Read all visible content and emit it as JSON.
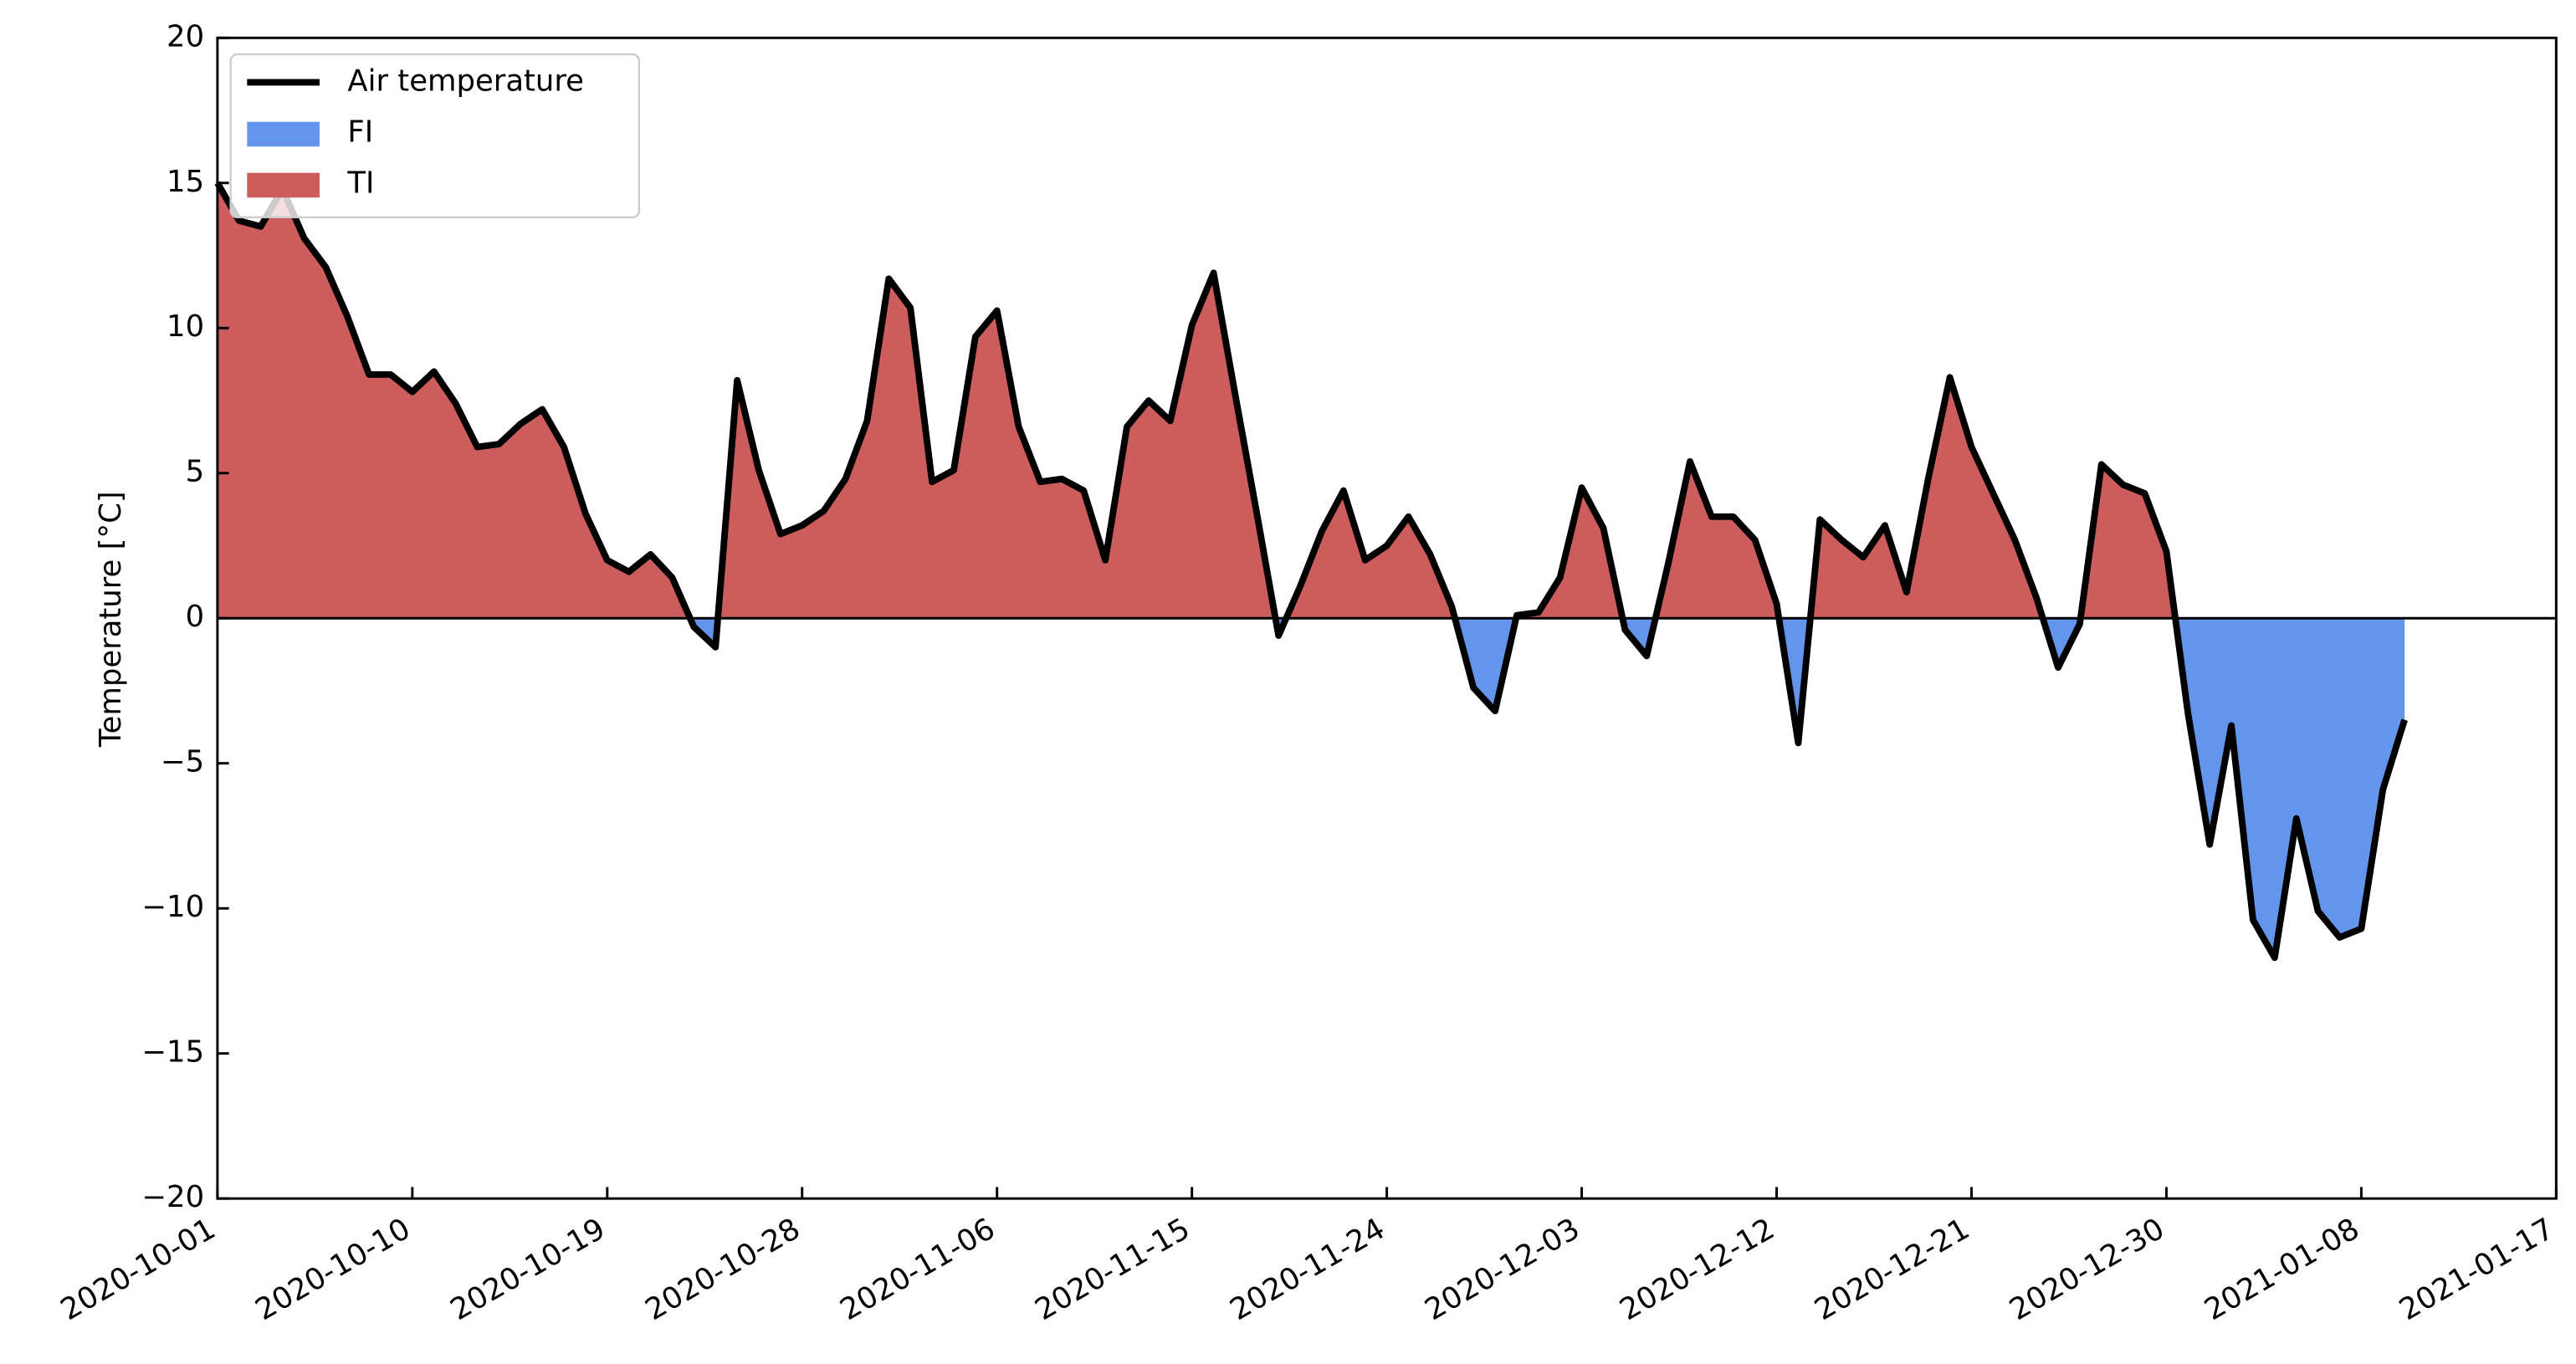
{
  "chart_data": {
    "type": "line",
    "ylabel": "Temperature [°C]",
    "x": [
      "2020-10-01",
      "2020-10-02",
      "2020-10-03",
      "2020-10-04",
      "2020-10-05",
      "2020-10-06",
      "2020-10-07",
      "2020-10-08",
      "2020-10-09",
      "2020-10-10",
      "2020-10-11",
      "2020-10-12",
      "2020-10-13",
      "2020-10-14",
      "2020-10-15",
      "2020-10-16",
      "2020-10-17",
      "2020-10-18",
      "2020-10-19",
      "2020-10-20",
      "2020-10-21",
      "2020-10-22",
      "2020-10-23",
      "2020-10-24",
      "2020-10-25",
      "2020-10-26",
      "2020-10-27",
      "2020-10-28",
      "2020-10-29",
      "2020-10-30",
      "2020-10-31",
      "2020-11-01",
      "2020-11-02",
      "2020-11-03",
      "2020-11-04",
      "2020-11-05",
      "2020-11-06",
      "2020-11-07",
      "2020-11-08",
      "2020-11-09",
      "2020-11-10",
      "2020-11-11",
      "2020-11-12",
      "2020-11-13",
      "2020-11-14",
      "2020-11-15",
      "2020-11-16",
      "2020-11-17",
      "2020-11-18",
      "2020-11-19",
      "2020-11-20",
      "2020-11-21",
      "2020-11-22",
      "2020-11-23",
      "2020-11-24",
      "2020-11-25",
      "2020-11-26",
      "2020-11-27",
      "2020-11-28",
      "2020-11-29",
      "2020-11-30",
      "2020-12-01",
      "2020-12-02",
      "2020-12-03",
      "2020-12-04",
      "2020-12-05",
      "2020-12-06",
      "2020-12-07",
      "2020-12-08",
      "2020-12-09",
      "2020-12-10",
      "2020-12-11",
      "2020-12-12",
      "2020-12-13",
      "2020-12-14",
      "2020-12-15",
      "2020-12-16",
      "2020-12-17",
      "2020-12-18",
      "2020-12-19",
      "2020-12-20",
      "2020-12-21",
      "2020-12-22",
      "2020-12-23",
      "2020-12-24",
      "2020-12-25",
      "2020-12-26",
      "2020-12-27",
      "2020-12-28",
      "2020-12-29",
      "2020-12-30",
      "2020-12-31",
      "2021-01-01",
      "2021-01-02",
      "2021-01-03",
      "2021-01-04",
      "2021-01-05",
      "2021-01-06",
      "2021-01-07",
      "2021-01-08",
      "2021-01-09",
      "2021-01-10"
    ],
    "series": [
      {
        "name": "Air temperature",
        "color": "#000000",
        "values": [
          15.0,
          13.7,
          13.5,
          14.8,
          13.1,
          12.1,
          10.4,
          8.4,
          8.4,
          7.8,
          8.5,
          7.4,
          5.9,
          6.0,
          6.7,
          7.2,
          5.9,
          3.6,
          2.0,
          1.6,
          2.2,
          1.4,
          -0.3,
          -1.0,
          8.2,
          5.1,
          2.9,
          3.2,
          3.7,
          4.8,
          6.8,
          11.7,
          10.7,
          4.7,
          5.1,
          9.7,
          10.6,
          6.6,
          4.7,
          4.8,
          4.4,
          2.0,
          6.6,
          7.5,
          6.8,
          10.1,
          11.9,
          7.7,
          3.6,
          -0.6,
          1.1,
          3.0,
          4.4,
          2.0,
          2.5,
          3.5,
          2.2,
          0.4,
          -2.4,
          -3.2,
          0.1,
          0.2,
          1.4,
          4.5,
          3.1,
          -0.4,
          -1.3,
          1.9,
          5.4,
          3.5,
          3.5,
          2.7,
          0.5,
          -4.3,
          3.4,
          2.7,
          2.1,
          3.2,
          0.9,
          4.8,
          8.3,
          5.9,
          4.3,
          2.7,
          0.7,
          -1.7,
          -0.2,
          5.3,
          4.6,
          4.3,
          2.3,
          -3.3,
          -7.8,
          -3.7,
          -10.4,
          -11.7,
          -6.9,
          -10.1,
          -11.0,
          -10.7,
          -5.9,
          -3.5
        ]
      }
    ],
    "fills": [
      {
        "name": "FI",
        "color": "#6495ed",
        "where": "below"
      },
      {
        "name": "TI",
        "color": "#cd5c5c",
        "where": "above"
      }
    ],
    "reference_line": 0,
    "xlim": [
      "2020-10-01",
      "2021-01-17"
    ],
    "xticks": [
      "2020-10-01",
      "2020-10-10",
      "2020-10-19",
      "2020-10-28",
      "2020-11-06",
      "2020-11-15",
      "2020-11-24",
      "2020-12-03",
      "2020-12-12",
      "2020-12-21",
      "2020-12-30",
      "2021-01-08",
      "2021-01-17"
    ],
    "ylim": [
      -20,
      20
    ],
    "yticks": [
      {
        "value": -20,
        "label": "−20"
      },
      {
        "value": -15,
        "label": "−15"
      },
      {
        "value": -10,
        "label": "−10"
      },
      {
        "value": -5,
        "label": "−5"
      },
      0,
      5,
      10,
      15,
      20
    ],
    "legend": "upper left"
  }
}
